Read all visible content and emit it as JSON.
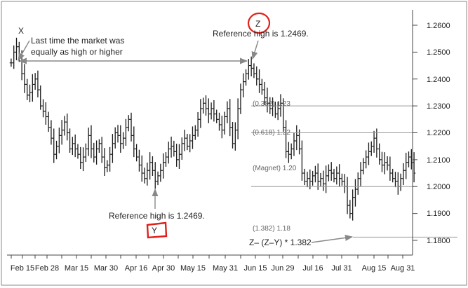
{
  "chart_data": {
    "type": "ohlc",
    "y_ticks": [
      "1.2600",
      "1.2500",
      "1.2400",
      "1.2300",
      "1.2200",
      "1.2100",
      "1.2000",
      "1.1900",
      "1.1800"
    ],
    "x_ticks": [
      "Feb 15",
      "Feb 28",
      "Mar 15",
      "Mar 30",
      "Apr 16",
      "Apr 30",
      "May 15",
      "May 31",
      "Jun 15",
      "Jun 29",
      "Jul 16",
      "Jul 31",
      "Aug 15",
      "Aug 31"
    ],
    "ylim": [
      1.177,
      1.2645
    ],
    "grid": false,
    "series": [
      {
        "values": [
          1.246,
          1.25,
          1.252,
          1.248,
          1.242,
          1.238,
          1.234,
          1.235,
          1.238,
          1.24,
          1.236,
          1.23,
          1.228,
          1.226,
          1.222,
          1.218,
          1.212,
          1.215,
          1.219,
          1.221,
          1.224,
          1.22,
          1.214,
          1.216,
          1.214,
          1.212,
          1.209,
          1.211,
          1.214,
          1.219,
          1.214,
          1.211,
          1.214,
          1.216,
          1.211,
          1.207,
          1.208,
          1.212,
          1.216,
          1.22,
          1.219,
          1.216,
          1.218,
          1.222,
          1.225,
          1.219,
          1.214,
          1.211,
          1.208,
          1.205,
          1.203,
          1.206,
          1.209,
          1.206,
          1.202,
          1.204,
          1.206,
          1.209,
          1.211,
          1.214,
          1.215,
          1.213,
          1.21,
          1.212,
          1.216,
          1.218,
          1.215,
          1.217,
          1.219,
          1.221,
          1.225,
          1.229,
          1.231,
          1.229,
          1.227,
          1.229,
          1.227,
          1.225,
          1.223,
          1.221,
          1.226,
          1.229,
          1.222,
          1.216,
          1.221,
          1.229,
          1.236,
          1.239,
          1.242,
          1.245,
          1.244,
          1.242,
          1.24,
          1.238,
          1.236,
          1.233,
          1.231,
          1.229,
          1.23,
          1.227,
          1.229,
          1.231,
          1.222,
          1.213,
          1.212,
          1.214,
          1.217,
          1.219,
          1.214,
          1.205,
          1.202,
          1.203,
          1.202,
          1.204,
          1.205,
          1.202,
          1.203,
          1.201,
          1.204,
          1.206,
          1.205,
          1.203,
          1.205,
          1.203,
          1.202,
          1.2,
          1.193,
          1.19,
          1.196,
          1.199,
          1.203,
          1.206,
          1.209,
          1.211,
          1.213,
          1.215,
          1.218,
          1.214,
          1.21,
          1.208,
          1.209,
          1.208,
          1.205,
          1.203,
          1.202,
          1.2,
          1.203,
          1.206,
          1.209,
          1.211,
          1.209,
          1.205
        ]
      }
    ],
    "levels": [
      {
        "label": "(0.382) 1.23",
        "value": 1.23
      },
      {
        "label": "(0.618) 1.22",
        "value": 1.22
      },
      {
        "label": "(Magnet) 1.20",
        "value": 1.2
      },
      {
        "label": "(1.382) 1.18",
        "value": 1.1812
      }
    ],
    "points": [
      {
        "label": "X",
        "price": 1.2469
      },
      {
        "label": "Y",
        "price": 1.2
      },
      {
        "label": "Z",
        "price": 1.2469
      }
    ],
    "annotations": [
      {
        "id": "x_note",
        "lines": [
          "Last time the market was",
          "equally as high or higher"
        ]
      },
      {
        "id": "z_note",
        "text": "Reference high is 1.2469."
      },
      {
        "id": "y_note",
        "text": "Reference high is 1.2469."
      },
      {
        "id": "proj_note",
        "text": "Z– (Z–Y) * 1.382"
      }
    ],
    "colors": {
      "bars": "#1a1a1a",
      "levels": "#999999",
      "arrows": "#888888",
      "circle": "#e0201a",
      "frame": "#888888"
    }
  }
}
